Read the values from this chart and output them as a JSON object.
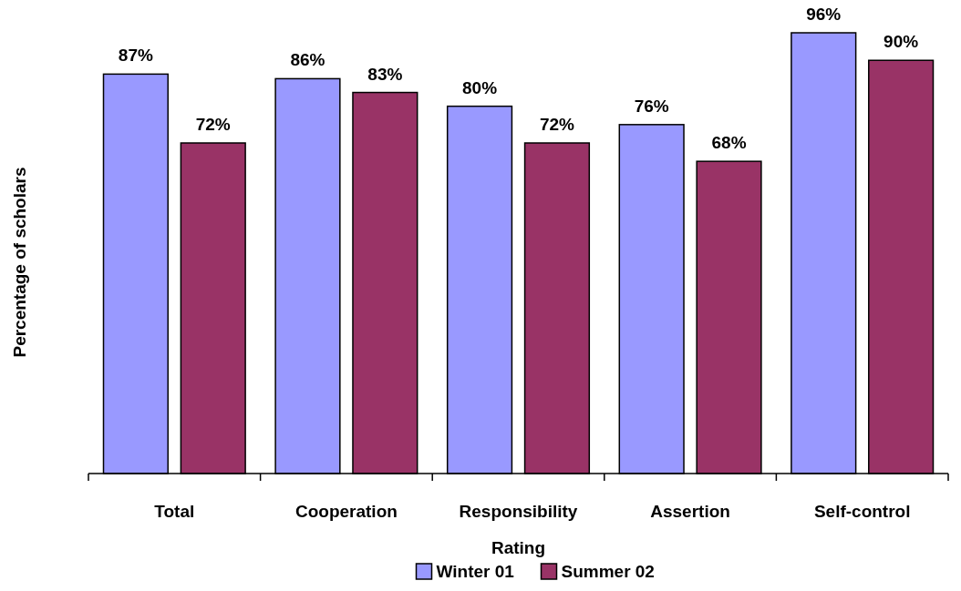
{
  "chart_data": {
    "type": "bar",
    "xlabel": "Rating",
    "ylabel": "Percentage of scholars",
    "categories": [
      "Total",
      "Cooperation",
      "Responsibility",
      "Assertion",
      "Self-control"
    ],
    "series": [
      {
        "name": "Winter 01",
        "color": "#9999ff",
        "values": [
          87,
          86,
          80,
          76,
          96
        ],
        "value_labels": [
          "87%",
          "86%",
          "80%",
          "76%",
          "96%"
        ]
      },
      {
        "name": "Summer 02",
        "color": "#993366",
        "values": [
          72,
          83,
          72,
          68,
          90
        ],
        "value_labels": [
          "72%",
          "83%",
          "72%",
          "68%",
          "90%"
        ]
      }
    ],
    "tick_labels": "x",
    "legend": "bottom"
  }
}
